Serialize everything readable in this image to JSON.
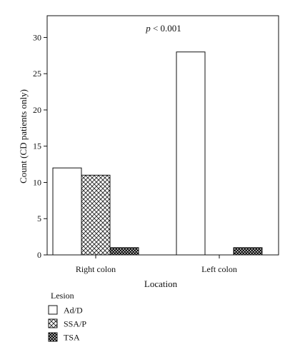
{
  "chart_data": {
    "type": "bar",
    "title": "",
    "annotation": {
      "italic": "p",
      "rest": " < 0.001"
    },
    "xlabel": "Location",
    "ylabel": "Count (CD patients only)",
    "categories": [
      "Right colon",
      "Left colon"
    ],
    "ylim": [
      0,
      33
    ],
    "yticks": [
      0,
      5,
      10,
      15,
      20,
      25,
      30
    ],
    "grid": false,
    "legend_position": "bottom-left",
    "legend_title": "Lesion",
    "series": [
      {
        "name": "Ad/D",
        "values": [
          12,
          28
        ],
        "fill": "plain"
      },
      {
        "name": "SSA/P",
        "values": [
          11,
          0
        ],
        "fill": "crosshatch"
      },
      {
        "name": "TSA",
        "values": [
          1,
          1
        ],
        "fill": "dotted"
      }
    ]
  }
}
